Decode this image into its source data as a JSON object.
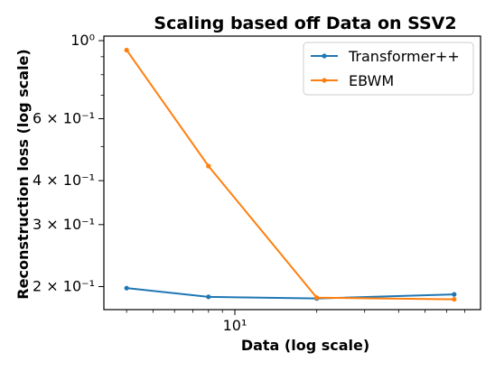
{
  "chart_data": {
    "type": "line",
    "title": "Scaling based off Data on SSV2",
    "xlabel": "Data (log scale)",
    "ylabel": "Reconstruction loss (log scale)",
    "xscale": "log",
    "yscale": "log",
    "xlim": [
      3.3,
      80
    ],
    "ylim": [
      0.172,
      1.03
    ],
    "grid": false,
    "legend_position": "top-right",
    "x_ticks": [
      {
        "value": 10,
        "label": "10¹"
      }
    ],
    "y_ticks": [
      {
        "value": 1.0,
        "label": "10⁰"
      },
      {
        "value": 0.6,
        "label": "6 × 10⁻¹"
      },
      {
        "value": 0.4,
        "label": "4 × 10⁻¹"
      },
      {
        "value": 0.3,
        "label": "3 × 10⁻¹"
      },
      {
        "value": 0.2,
        "label": "2 × 10⁻¹"
      }
    ],
    "series": [
      {
        "name": "Transformer++",
        "color": "#1f77b4",
        "x": [
          4,
          8,
          20,
          64
        ],
        "y": [
          0.198,
          0.187,
          0.185,
          0.19
        ]
      },
      {
        "name": "EBWM",
        "color": "#ff7f0e",
        "x": [
          4,
          8,
          20,
          64
        ],
        "y": [
          0.94,
          0.44,
          0.186,
          0.184
        ]
      }
    ]
  }
}
